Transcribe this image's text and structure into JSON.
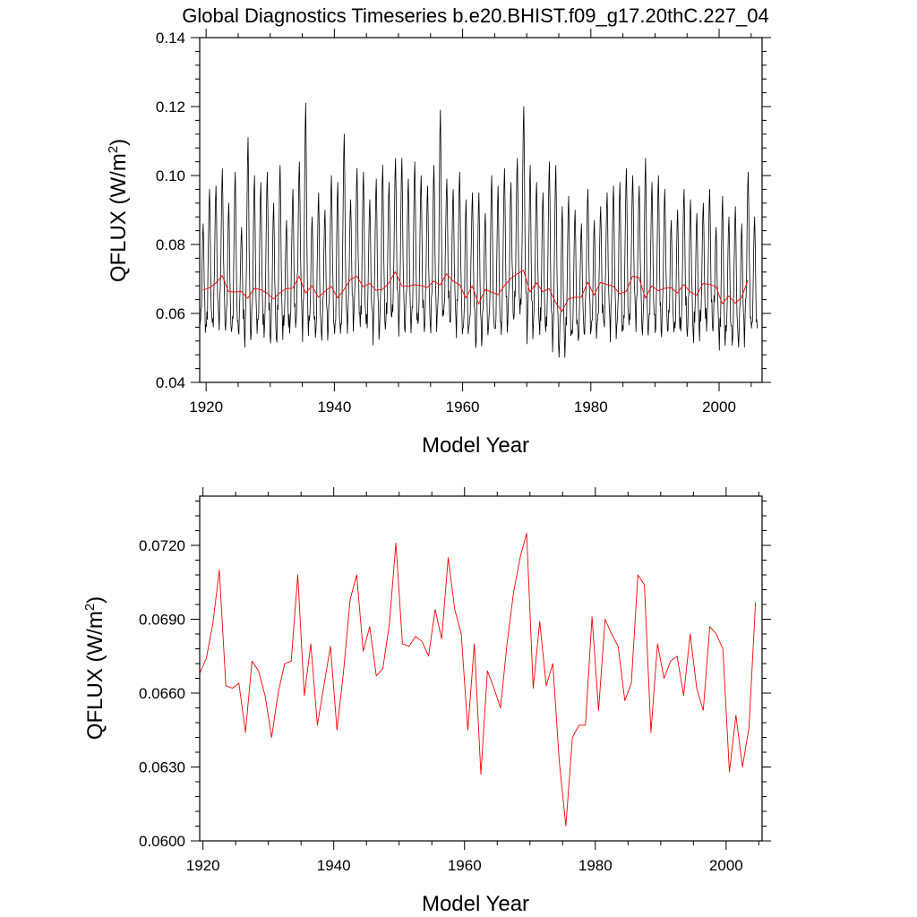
{
  "title": "Global Diagnostics Timeseries b.e20.BHIST.f09_g17.20thC.227_04",
  "colors": {
    "monthly": "#000000",
    "annual": "#ff0000",
    "axis": "#000000"
  },
  "chart_data": [
    {
      "type": "line",
      "name": "top-panel",
      "xlabel": "Model Year",
      "ylabel": "QFLUX (W/m²)",
      "ylabel_parts": {
        "base": "QFLUX (W/m",
        "sup": "2",
        "tail": ")"
      },
      "xlim": [
        1919.0,
        2006.7
      ],
      "ylim": [
        0.04,
        0.14
      ],
      "xticks": [
        1920,
        1940,
        1960,
        1980,
        2000
      ],
      "xtick_labels": [
        "1920",
        "1940",
        "1960",
        "1980",
        "2000"
      ],
      "yticks": [
        0.04,
        0.06,
        0.08,
        0.1,
        0.12,
        0.14
      ],
      "ytick_labels": [
        "0.04",
        "0.06",
        "0.08",
        "0.10",
        "0.12",
        "0.14"
      ],
      "series": [
        {
          "name": "monthly",
          "color": "#000000",
          "start_year": 1919.04,
          "step": 0.08333,
          "seasonal_cycle": [
            0.05,
            0.054,
            0.058,
            0.066,
            0.08,
            0.091,
            0.096,
            0.086,
            0.07,
            0.06,
            0.055,
            0.051
          ],
          "annual_peaks": [
            0.086,
            0.096,
            0.097,
            0.102,
            0.092,
            0.101,
            0.085,
            0.111,
            0.1,
            0.098,
            0.101,
            0.092,
            0.103,
            0.087,
            0.096,
            0.104,
            0.121,
            0.088,
            0.095,
            0.09,
            0.1,
            0.098,
            0.112,
            0.093,
            0.102,
            0.101,
            0.093,
            0.099,
            0.103,
            0.098,
            0.105,
            0.105,
            0.099,
            0.104,
            0.1,
            0.097,
            0.103,
            0.119,
            0.099,
            0.096,
            0.101,
            0.093,
            0.095,
            0.095,
            0.089,
            0.1,
            0.097,
            0.102,
            0.098,
            0.105,
            0.12,
            0.103,
            0.098,
            0.095,
            0.104,
            0.103,
            0.091,
            0.094,
            0.09,
            0.086,
            0.096,
            0.087,
            0.091,
            0.095,
            0.097,
            0.098,
            0.102,
            0.1,
            0.097,
            0.105,
            0.098,
            0.1,
            0.096,
            0.087,
            0.09,
            0.096,
            0.093,
            0.089,
            0.092,
            0.096,
            0.085,
            0.094,
            0.088,
            0.091,
            0.086,
            0.101,
            0.088
          ]
        },
        {
          "name": "annual-mean",
          "color": "#ff0000",
          "ref": "annual"
        }
      ]
    },
    {
      "type": "line",
      "name": "bottom-panel",
      "xlabel": "Model Year",
      "ylabel": "QFLUX (W/m²)",
      "ylabel_parts": {
        "base": "QFLUX (W/m",
        "sup": "2",
        "tail": ")"
      },
      "xlim": [
        1919.5,
        2005.5
      ],
      "ylim": [
        0.06,
        0.074
      ],
      "xticks": [
        1920,
        1940,
        1960,
        1980,
        2000
      ],
      "xtick_labels": [
        "1920",
        "1940",
        "1960",
        "1980",
        "2000"
      ],
      "yticks": [
        0.06,
        0.063,
        0.066,
        0.069,
        0.072
      ],
      "ytick_labels": [
        "0.0600",
        "0.0630",
        "0.0660",
        "0.0690",
        "0.0720"
      ],
      "series": [
        {
          "name": "annual-mean",
          "color": "#ff0000",
          "start_year": 1919.5,
          "step": 1,
          "values": [
            0.0668,
            0.0674,
            0.0688,
            0.071,
            0.0663,
            0.0662,
            0.0664,
            0.0644,
            0.0673,
            0.0669,
            0.0659,
            0.0642,
            0.066,
            0.0672,
            0.0673,
            0.0708,
            0.0659,
            0.068,
            0.0647,
            0.0663,
            0.0679,
            0.0645,
            0.0669,
            0.0698,
            0.0708,
            0.0677,
            0.0687,
            0.0667,
            0.067,
            0.0688,
            0.0721,
            0.068,
            0.0679,
            0.0683,
            0.0681,
            0.0675,
            0.0694,
            0.0682,
            0.0715,
            0.0694,
            0.0684,
            0.0645,
            0.068,
            0.0627,
            0.0669,
            0.0662,
            0.0654,
            0.068,
            0.0701,
            0.0715,
            0.0725,
            0.0662,
            0.0689,
            0.0663,
            0.0672,
            0.0632,
            0.0606,
            0.0642,
            0.0647,
            0.0647,
            0.0691,
            0.0653,
            0.069,
            0.0684,
            0.0679,
            0.0657,
            0.0664,
            0.0708,
            0.0704,
            0.0644,
            0.068,
            0.0666,
            0.0673,
            0.0675,
            0.0659,
            0.0684,
            0.0662,
            0.0653,
            0.0687,
            0.0684,
            0.0678,
            0.0628,
            0.0651,
            0.063,
            0.0646,
            0.0697
          ]
        }
      ]
    }
  ]
}
